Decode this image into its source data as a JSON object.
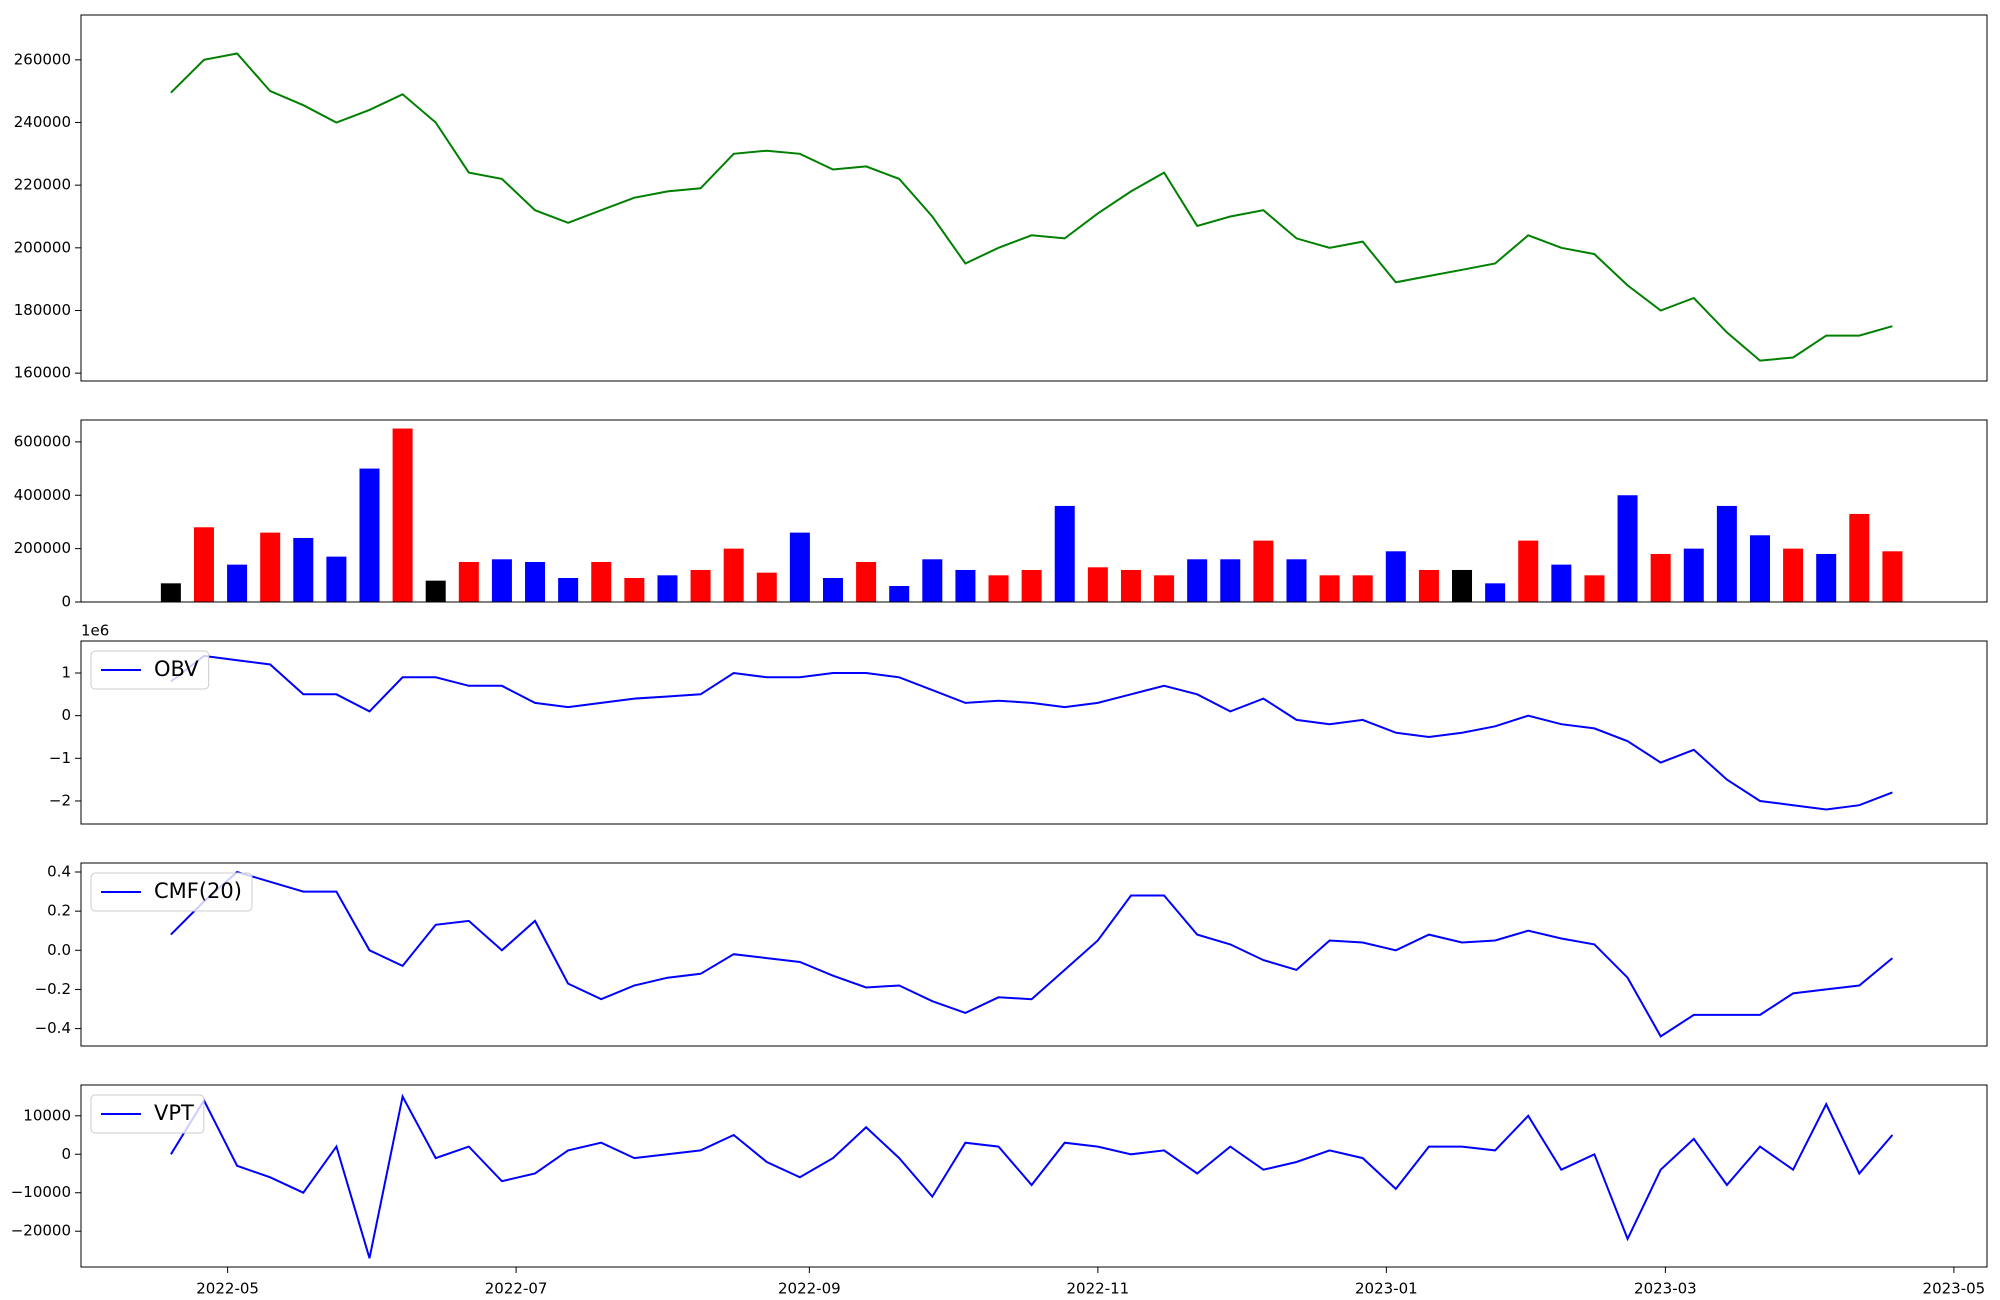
{
  "chart_data": [
    {
      "type": "line",
      "x": [
        "2022-04-19",
        "2022-04-26",
        "2022-05-03",
        "2022-05-10",
        "2022-05-17",
        "2022-05-24",
        "2022-05-31",
        "2022-06-07",
        "2022-06-14",
        "2022-06-21",
        "2022-06-28",
        "2022-07-05",
        "2022-07-12",
        "2022-07-19",
        "2022-07-26",
        "2022-08-02",
        "2022-08-09",
        "2022-08-16",
        "2022-08-23",
        "2022-08-30",
        "2022-09-06",
        "2022-09-13",
        "2022-09-20",
        "2022-09-27",
        "2022-10-04",
        "2022-10-11",
        "2022-10-18",
        "2022-10-25",
        "2022-11-01",
        "2022-11-08",
        "2022-11-15",
        "2022-11-22",
        "2022-11-29",
        "2022-12-06",
        "2022-12-13",
        "2022-12-20",
        "2022-12-27",
        "2023-01-03",
        "2023-01-10",
        "2023-01-17",
        "2023-01-24",
        "2023-01-31",
        "2023-02-07",
        "2023-02-14",
        "2023-02-21",
        "2023-02-28",
        "2023-03-07",
        "2023-03-14",
        "2023-03-21",
        "2023-03-28",
        "2023-04-04",
        "2023-04-11",
        "2023-04-18"
      ],
      "series": [
        {
          "color": "#008000",
          "values": [
            249500,
            260000,
            262000,
            250000,
            245500,
            240000,
            244000,
            249000,
            240000,
            224000,
            222000,
            212000,
            208000,
            212000,
            216000,
            218000,
            219000,
            230000,
            231000,
            230000,
            225000,
            226000,
            222000,
            210000,
            195000,
            200000,
            204000,
            203000,
            211000,
            218000,
            224000,
            207000,
            210000,
            212000,
            203000,
            200000,
            202000,
            189000,
            191000,
            193000,
            195000,
            204000,
            200000,
            198000,
            188000,
            180000,
            184000,
            173000,
            164000,
            165000,
            172000,
            172000,
            175000
          ]
        }
      ],
      "ylim": [
        157500,
        274300
      ],
      "yticks": [
        160000,
        180000,
        200000,
        220000,
        240000,
        260000
      ]
    },
    {
      "type": "bar",
      "values": [
        70000,
        280000,
        140000,
        260000,
        240000,
        170000,
        500000,
        650000,
        80000,
        150000,
        160000,
        150000,
        90000,
        150000,
        90000,
        100000,
        120000,
        200000,
        110000,
        260000,
        90000,
        150000,
        60000,
        160000,
        120000,
        100000,
        120000,
        360000,
        130000,
        120000,
        100000,
        160000,
        160000,
        230000,
        160000,
        100000,
        100000,
        190000,
        120000,
        120000,
        70000,
        230000,
        140000,
        100000,
        400000,
        180000,
        200000,
        360000,
        250000,
        200000,
        180000,
        330000,
        190000
      ],
      "colors": [
        "#000000",
        "#ff0000",
        "#0000ff",
        "#ff0000",
        "#0000ff",
        "#0000ff",
        "#0000ff",
        "#ff0000",
        "#000000",
        "#ff0000",
        "#0000ff",
        "#0000ff",
        "#0000ff",
        "#ff0000",
        "#ff0000",
        "#0000ff",
        "#ff0000",
        "#ff0000",
        "#ff0000",
        "#0000ff",
        "#0000ff",
        "#ff0000",
        "#0000ff",
        "#0000ff",
        "#0000ff",
        "#ff0000",
        "#ff0000",
        "#0000ff",
        "#ff0000",
        "#ff0000",
        "#ff0000",
        "#0000ff",
        "#0000ff",
        "#ff0000",
        "#0000ff",
        "#ff0000",
        "#ff0000",
        "#0000ff",
        "#ff0000",
        "#000000",
        "#0000ff",
        "#ff0000",
        "#0000ff",
        "#ff0000",
        "#0000ff",
        "#ff0000",
        "#0000ff",
        "#0000ff",
        "#0000ff",
        "#ff0000",
        "#0000ff",
        "#ff0000",
        "#ff0000"
      ],
      "ylim": [
        0,
        682000
      ],
      "yticks": [
        0,
        200000,
        400000,
        600000
      ]
    },
    {
      "type": "line",
      "series": [
        {
          "name": "OBV",
          "color": "#0000ff",
          "values": [
            0.8,
            1.4,
            1.3,
            1.2,
            0.5,
            0.5,
            0.1,
            0.9,
            0.9,
            0.7,
            0.7,
            0.3,
            0.2,
            0.3,
            0.4,
            0.45,
            0.5,
            1.0,
            0.9,
            0.9,
            1.0,
            1.0,
            0.9,
            0.6,
            0.3,
            0.35,
            0.3,
            0.2,
            0.3,
            0.5,
            0.7,
            0.5,
            0.1,
            0.4,
            -0.1,
            -0.2,
            -0.1,
            -0.4,
            -0.5,
            -0.4,
            -0.25,
            0.0,
            -0.2,
            -0.3,
            -0.6,
            -1.1,
            -0.8,
            -1.5,
            -2.0,
            -2.1,
            -2.2,
            -2.1,
            -1.8
          ]
        }
      ],
      "y_offset_label": "1e6",
      "ylim": [
        -2.54,
        1.75
      ],
      "yticks": [
        {
          "value": -2,
          "label": "−2"
        },
        {
          "value": -1,
          "label": "−1"
        },
        0,
        1
      ],
      "legend": "upper left"
    },
    {
      "type": "line",
      "series": [
        {
          "name": "CMF(20)",
          "color": "#0000ff",
          "values": [
            0.08,
            0.25,
            0.4,
            0.35,
            0.3,
            0.3,
            0.0,
            -0.08,
            0.13,
            0.15,
            0.0,
            0.15,
            -0.17,
            -0.25,
            -0.18,
            -0.14,
            -0.12,
            -0.02,
            -0.04,
            -0.06,
            -0.13,
            -0.19,
            -0.18,
            -0.26,
            -0.32,
            -0.24,
            -0.25,
            -0.1,
            0.05,
            0.28,
            0.28,
            0.08,
            0.03,
            -0.05,
            -0.1,
            0.05,
            0.04,
            0.0,
            0.08,
            0.04,
            0.05,
            0.1,
            0.06,
            0.03,
            -0.14,
            -0.44,
            -0.33,
            -0.33,
            -0.33,
            -0.22,
            -0.2,
            -0.18,
            -0.04
          ]
        }
      ],
      "ylim": [
        -0.489,
        0.446
      ],
      "yticks": [
        {
          "value": -0.4,
          "label": "−0.4"
        },
        {
          "value": -0.2,
          "label": "−0.2"
        },
        {
          "value": 0,
          "label": "0.0"
        },
        0.2,
        0.4
      ],
      "legend": "upper left"
    },
    {
      "type": "line",
      "series": [
        {
          "name": "VPT",
          "color": "#0000ff",
          "values": [
            0,
            14000,
            -3000,
            -6000,
            -10000,
            2000,
            -27000,
            15000,
            -1000,
            2000,
            -7000,
            -5000,
            1000,
            3000,
            -1000,
            0,
            1000,
            5000,
            -2000,
            -6000,
            -1000,
            7000,
            -1000,
            -11000,
            3000,
            2000,
            -8000,
            3000,
            2000,
            0,
            1000,
            -5000,
            2000,
            -4000,
            -2000,
            1000,
            -1000,
            -9000,
            2000,
            2000,
            1000,
            10000,
            -4000,
            0,
            -22000,
            -4000,
            4000,
            -8000,
            2000,
            -4000,
            13000,
            -5000,
            5000
          ]
        }
      ],
      "ylim": [
        -29300,
        18000
      ],
      "yticks": [
        {
          "value": -20000,
          "label": "−20000"
        },
        {
          "value": -10000,
          "label": "−10000"
        },
        0,
        10000
      ],
      "legend": "upper left",
      "xlim": [
        "2022-03-31",
        "2023-05-08"
      ],
      "xticks": [
        {
          "value": "2022-05-01",
          "label": "2022-05"
        },
        {
          "value": "2022-07-01",
          "label": "2022-07"
        },
        {
          "value": "2022-09-01",
          "label": "2022-09"
        },
        {
          "value": "2022-11-01",
          "label": "2022-11"
        },
        {
          "value": "2023-01-01",
          "label": "2023-01"
        },
        {
          "value": "2023-03-01",
          "label": "2023-03"
        },
        {
          "value": "2023-05-01",
          "label": "2023-05"
        }
      ]
    }
  ]
}
